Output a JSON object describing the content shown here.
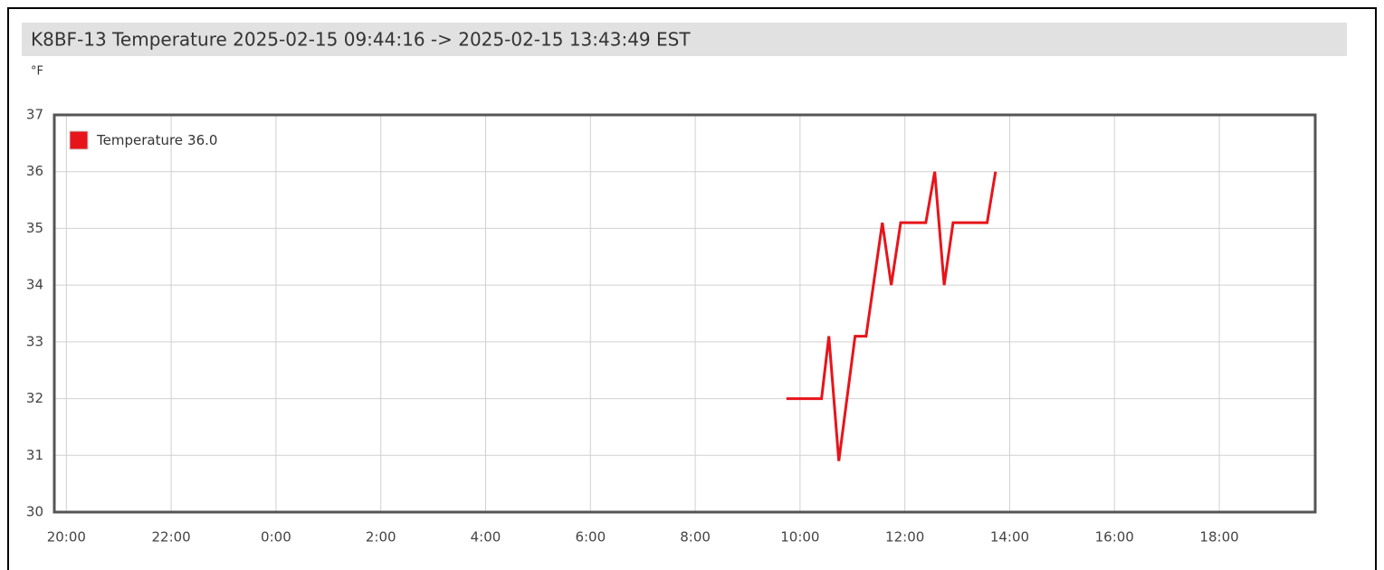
{
  "chart_data": {
    "type": "line",
    "title": "K8BF-13 Temperature 2025-02-15 09:44:16 -> 2025-02-15 13:43:49 EST",
    "y_label": "°F",
    "x": [
      9.74,
      10.41,
      10.55,
      10.74,
      11.05,
      11.26,
      11.57,
      11.74,
      11.92,
      12.4,
      12.57,
      12.75,
      12.92,
      13.57,
      13.73
    ],
    "series": [
      {
        "name": "Temperature",
        "legend_value": "36.0",
        "color": "#e8141b",
        "values": [
          32,
          32,
          33.1,
          30.9,
          33.1,
          33.1,
          35.1,
          34,
          35.1,
          35.1,
          36,
          34,
          35.1,
          35.1,
          36
        ]
      }
    ],
    "xlim": [
      -4.23,
      19.83
    ],
    "xticks": [
      {
        "value": -4,
        "label": "20:00"
      },
      {
        "value": -2,
        "label": "22:00"
      },
      {
        "value": 0,
        "label": "0:00"
      },
      {
        "value": 2,
        "label": "2:00"
      },
      {
        "value": 4,
        "label": "4:00"
      },
      {
        "value": 6,
        "label": "6:00"
      },
      {
        "value": 8,
        "label": "8:00"
      },
      {
        "value": 10,
        "label": "10:00"
      },
      {
        "value": 12,
        "label": "12:00"
      },
      {
        "value": 14,
        "label": "14:00"
      },
      {
        "value": 16,
        "label": "16:00"
      },
      {
        "value": 18,
        "label": "18:00"
      }
    ],
    "ylim": [
      30,
      37
    ],
    "yticks": [
      30,
      31,
      32,
      33,
      34,
      35,
      36,
      37
    ],
    "grid": true,
    "legend": "upper left"
  }
}
